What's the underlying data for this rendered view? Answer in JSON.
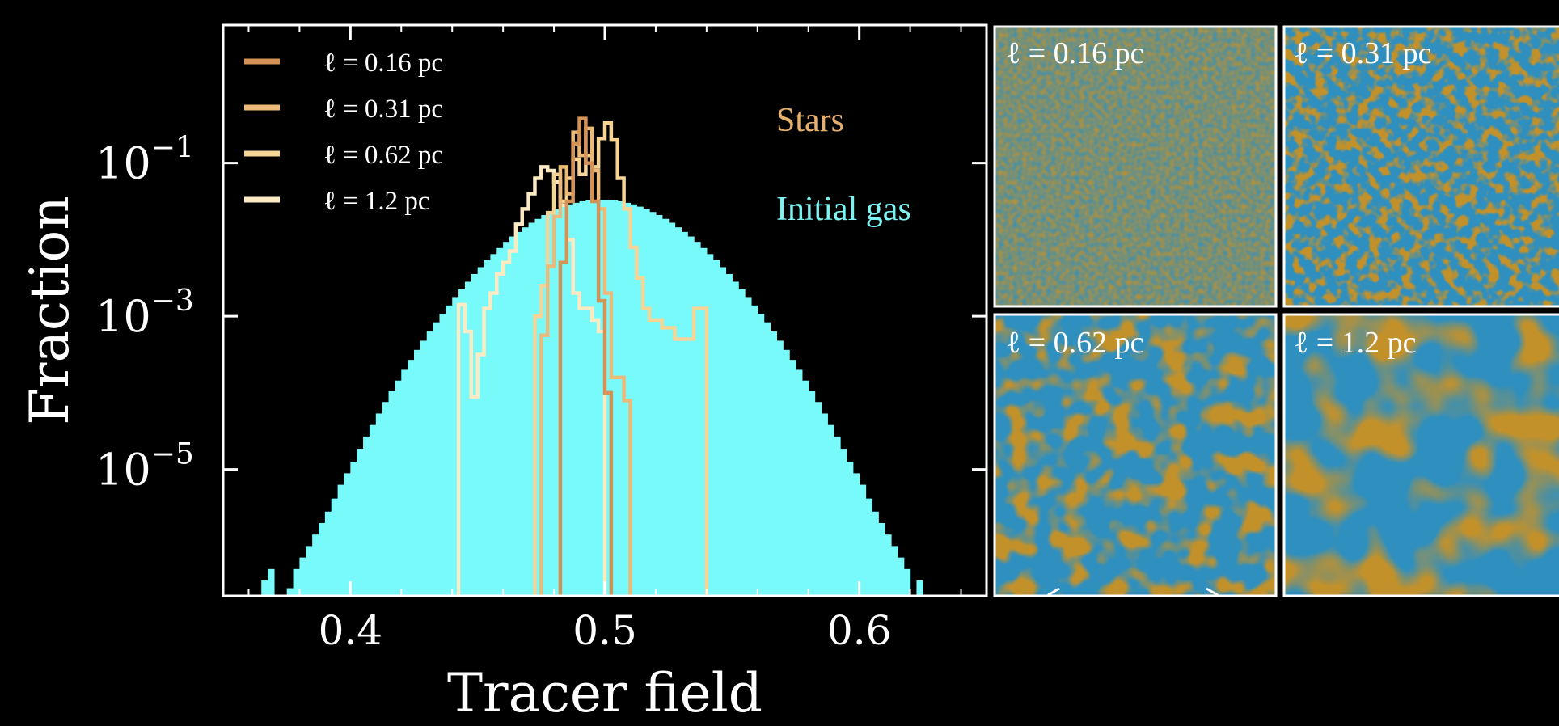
{
  "colors": {
    "background": "#000000",
    "gas": "#78FAFA",
    "axis": "#FFFFFF",
    "stars_label": "#E7B06C",
    "gas_label": "#7CF4F4",
    "lines": [
      "#D39357",
      "#EBBA78",
      "#F6D496",
      "#FCEAC3"
    ],
    "panel_gold": "#C3912A",
    "panel_blue": "#2F8FBF"
  },
  "chart_data": [
    {
      "type": "histogram",
      "title": "",
      "xlabel": "Tracer field",
      "ylabel": "Fraction",
      "xlim": [
        0.35,
        0.65
      ],
      "ylim_log10": [
        -6.65,
        0.8
      ],
      "x_ticks": [
        0.4,
        0.5,
        0.6
      ],
      "x_tick_labels": [
        "0.4",
        "0.5",
        "0.6"
      ],
      "y_ticks_log10": [
        -1,
        -3,
        -5
      ],
      "y_tick_labels": [
        {
          "base": "10",
          "exp": "−1"
        },
        {
          "base": "10",
          "exp": "−3"
        },
        {
          "base": "10",
          "exp": "−5"
        }
      ],
      "annotations": {
        "stars": "Stars",
        "gas": "Initial gas"
      },
      "legend": {
        "position": "top-left",
        "entries": [
          "ℓ = 0.16 pc",
          "ℓ = 0.31 pc",
          "ℓ = 0.62 pc",
          "ℓ = 1.2 pc"
        ]
      },
      "gas": {
        "name": "Initial gas",
        "bin_width": 0.0025,
        "x_start": 0.365,
        "log10_values": [
          -6.45,
          -6.3,
          -99,
          -99,
          -6.55,
          -6.3,
          -6.15,
          -6.0,
          -5.85,
          -5.7,
          -5.55,
          -5.38,
          -5.2,
          -5.05,
          -4.9,
          -4.73,
          -4.57,
          -4.42,
          -4.27,
          -4.12,
          -3.98,
          -3.84,
          -3.7,
          -3.57,
          -3.44,
          -3.32,
          -3.2,
          -3.08,
          -2.97,
          -2.86,
          -2.75,
          -2.65,
          -2.55,
          -2.45,
          -2.36,
          -2.27,
          -2.19,
          -2.11,
          -2.03,
          -1.96,
          -1.9,
          -1.84,
          -1.78,
          -1.73,
          -1.68,
          -1.64,
          -1.6,
          -1.57,
          -1.54,
          -1.52,
          -1.5,
          -1.49,
          -1.48,
          -1.48,
          -1.48,
          -1.49,
          -1.5,
          -1.52,
          -1.54,
          -1.57,
          -1.6,
          -1.64,
          -1.68,
          -1.73,
          -1.78,
          -1.84,
          -1.9,
          -1.96,
          -2.03,
          -2.11,
          -2.19,
          -2.27,
          -2.36,
          -2.45,
          -2.55,
          -2.65,
          -2.75,
          -2.86,
          -2.97,
          -3.08,
          -3.2,
          -3.32,
          -3.44,
          -3.57,
          -3.7,
          -3.84,
          -3.98,
          -4.12,
          -4.27,
          -4.42,
          -4.57,
          -4.73,
          -4.9,
          -5.05,
          -5.2,
          -5.38,
          -5.55,
          -5.7,
          -5.85,
          -6.0,
          -6.15,
          -6.3,
          -99,
          -6.45
        ]
      },
      "series": [
        {
          "name": "ℓ = 0.16 pc",
          "color": "#D39357",
          "bin_width": 0.0025,
          "x_start": 0.4825,
          "log10_values": [
            -2.3,
            -1.5,
            -0.75,
            -0.42,
            -1.0,
            -1.5,
            -2.8,
            -4.0
          ]
        },
        {
          "name": "ℓ = 0.31 pc",
          "color": "#EBBA78",
          "bin_width": 0.0025,
          "x_start": 0.475,
          "log10_values": [
            -3.25,
            -2.35,
            -1.7,
            -1.05,
            -1.4,
            -0.6,
            -0.9,
            -0.55,
            -1.1,
            -1.6,
            -2.7,
            -3.8,
            -3.8,
            -4.1
          ]
        },
        {
          "name": "ℓ = 0.62 pc",
          "color": "#F6D496",
          "bin_width": 0.0025,
          "x_start": 0.4725,
          "log10_values": [
            -3.0,
            -2.6,
            -1.65,
            -1.15,
            -1.5,
            -1.2,
            -0.95,
            -1.15,
            -0.9,
            -1.05,
            -0.68,
            -0.48,
            -0.7,
            -1.2,
            -1.6,
            -2.1,
            -2.5,
            -2.9,
            -3.05,
            -3.05,
            -3.15,
            -3.15,
            -3.3,
            -3.3,
            -3.3,
            -2.9,
            -2.9
          ]
        },
        {
          "name": "ℓ = 1.2 pc",
          "color": "#FCEAC3",
          "bin_width": 0.0025,
          "x_start": 0.4425,
          "log10_values": [
            -2.85,
            -3.2,
            -4.05,
            -3.5,
            -2.9,
            -2.7,
            -2.45,
            -2.3,
            -2.15,
            -1.8,
            -1.6,
            -1.4,
            -1.2,
            -1.05,
            -1.1,
            -1.25,
            -1.55,
            -2.0,
            -2.7,
            -2.9,
            -2.9,
            -3.05,
            -3.2
          ]
        }
      ]
    },
    {
      "type": "image_grid",
      "panels": [
        {
          "label": "ℓ = 0.16 pc"
        },
        {
          "label": "ℓ = 0.31 pc"
        },
        {
          "label": "ℓ = 0.62 pc"
        },
        {
          "label": "ℓ = 1.2 pc"
        }
      ]
    }
  ]
}
